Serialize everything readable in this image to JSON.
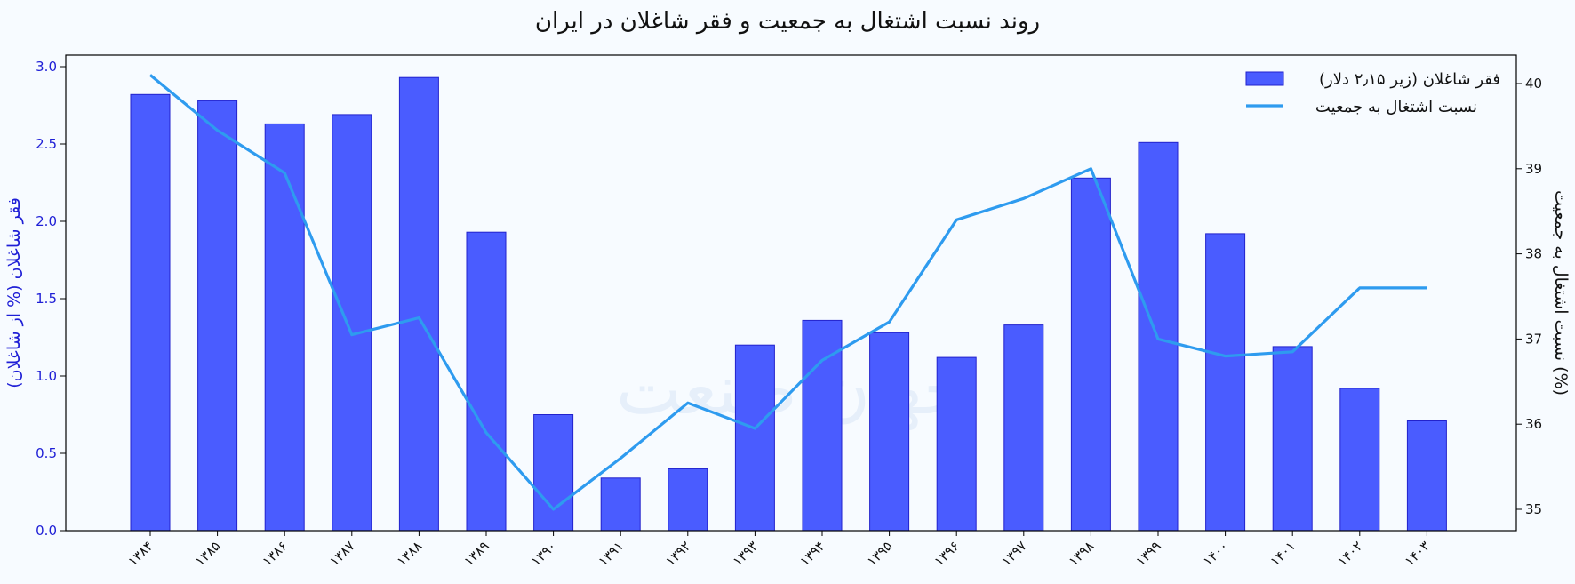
{
  "chart_data": {
    "type": "bar",
    "title": "روند نسبت اشتغال به جمعیت و فقر شاغلان در ایران",
    "categories": [
      "۱۳۸۴",
      "۱۳۸۵",
      "۱۳۸۶",
      "۱۳۸۷",
      "۱۳۸۸",
      "۱۳۸۹",
      "۱۳۹۰",
      "۱۳۹۱",
      "۱۳۹۲",
      "۱۳۹۳",
      "۱۳۹۴",
      "۱۳۹۵",
      "۱۳۹۶",
      "۱۳۹۷",
      "۱۳۹۸",
      "۱۳۹۹",
      "۱۴۰۰",
      "۱۴۰۱",
      "۱۴۰۲",
      "۱۴۰۳"
    ],
    "series": [
      {
        "name": "فقر شاغلان (زیر ۲٫۱۵ دلار)",
        "type": "bar",
        "axis": "left",
        "color": "#4a5cff",
        "values": [
          2.82,
          2.78,
          2.63,
          2.69,
          2.93,
          1.93,
          0.75,
          0.34,
          0.4,
          1.2,
          1.36,
          1.28,
          1.12,
          1.33,
          2.28,
          2.51,
          1.92,
          1.19,
          0.92,
          0.71
        ]
      },
      {
        "name": "نسبت اشتغال به جمعیت",
        "type": "line",
        "axis": "right",
        "color": "#2e9bef",
        "values": [
          40.1,
          39.45,
          38.95,
          37.05,
          37.25,
          35.9,
          35.0,
          35.6,
          36.25,
          35.95,
          36.75,
          37.2,
          38.4,
          38.65,
          39.0,
          37.0,
          36.8,
          36.85,
          37.6,
          37.6
        ]
      }
    ],
    "ylabel": "فقر شاغلان (% از شاغلان)",
    "ylabel_right": "نسبت اشتغال به جمعیت (%)",
    "ylim": [
      0,
      3.0
    ],
    "ylim_right": [
      35,
      40
    ],
    "yticks_left": [
      "0.0",
      "0.5",
      "1.0",
      "1.5",
      "2.0",
      "2.5",
      "3.0"
    ],
    "yticks_right": [
      "35",
      "36",
      "37",
      "38",
      "39",
      "40"
    ],
    "grid": false,
    "legend": "top-right"
  },
  "watermark_text": "جهان صنعت"
}
